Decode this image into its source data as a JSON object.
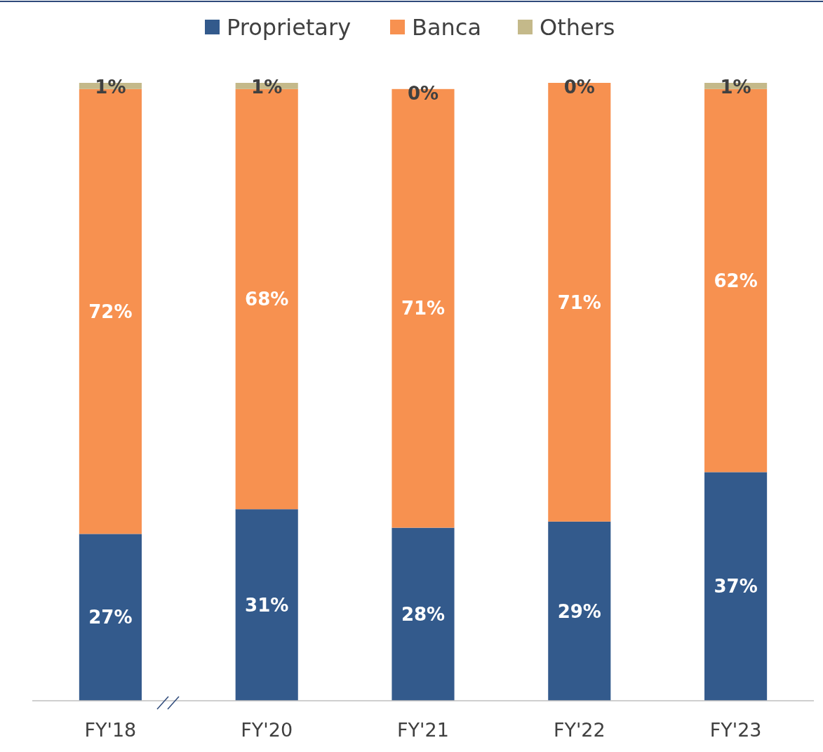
{
  "chart_data": {
    "type": "bar",
    "stacked": true,
    "categories": [
      "FY'18",
      "FY'20",
      "FY'21",
      "FY'22",
      "FY'23"
    ],
    "series": [
      {
        "name": "Proprietary",
        "color": "#335a8c",
        "values": [
          27,
          31,
          28,
          29,
          37
        ],
        "value_labels": [
          "27%",
          "31%",
          "28%",
          "29%",
          "37%"
        ]
      },
      {
        "name": "Banca",
        "color": "#f79150",
        "values": [
          72,
          68,
          71,
          71,
          62
        ],
        "value_labels": [
          "72%",
          "68%",
          "71%",
          "71%",
          "62%"
        ]
      },
      {
        "name": "Others",
        "color": "#c4b98a",
        "values": [
          1,
          1,
          0,
          0,
          1
        ],
        "value_labels": [
          "1%",
          "1%",
          "0%",
          "0%",
          "1%"
        ]
      }
    ],
    "ylim": [
      0,
      100
    ],
    "tick_labels": "x",
    "legend": "top"
  }
}
